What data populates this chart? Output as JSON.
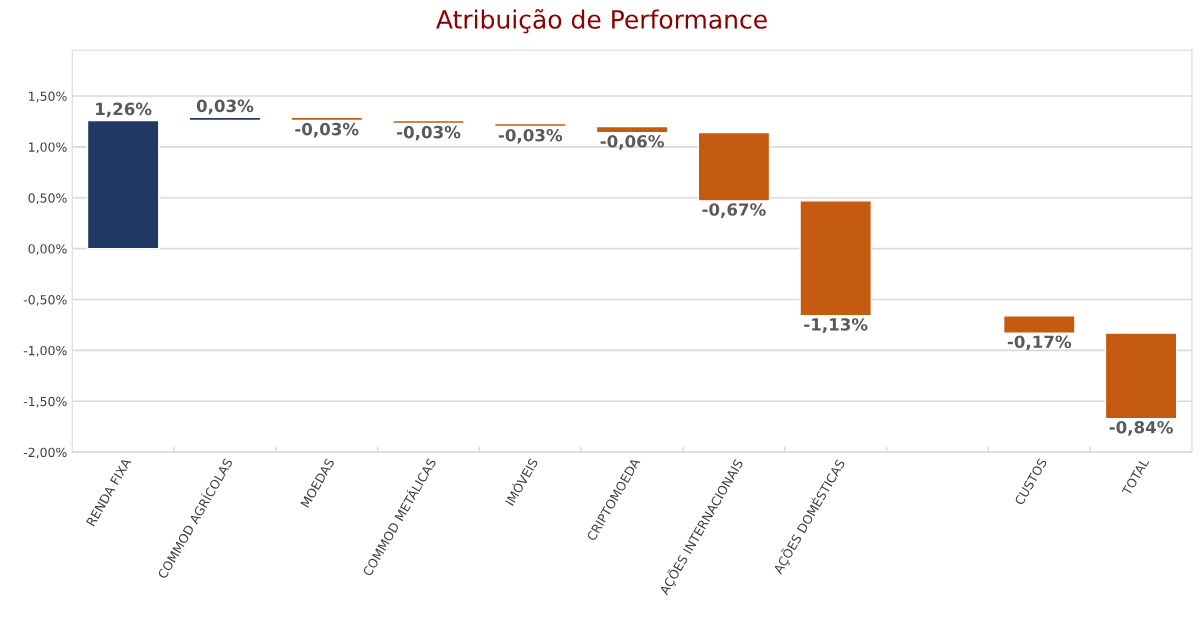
{
  "chart_data": {
    "type": "bar",
    "title": "Atribuição de Performance",
    "categories": [
      "RENDA FIXA",
      "COMMOD AGRÍCOLAS",
      "MOEDAS",
      "COMMOD METÁLICAS",
      "IMÓVEIS",
      "CRIPTOMOEDA",
      "AÇÕES INTERNACIONAIS",
      "AÇÕES DOMÉSTICAS",
      null,
      "CUSTOS",
      "TOTAL"
    ],
    "values": [
      1.26,
      0.03,
      -0.03,
      -0.03,
      -0.03,
      -0.06,
      -0.67,
      -1.13,
      null,
      -0.17,
      -0.84
    ],
    "base": [
      0,
      1.26,
      1.29,
      1.26,
      1.23,
      1.2,
      1.14,
      0.47,
      null,
      -0.66,
      -0.83
    ],
    "colors": [
      "#1f3864",
      "#1f3864",
      "#c55a11",
      "#c55a11",
      "#c55a11",
      "#c55a11",
      "#c55a11",
      "#c55a11",
      null,
      "#c55a11",
      "#c55a11"
    ],
    "value_labels": [
      "1,26%",
      "0,03%",
      "-0,03%",
      "-0,03%",
      "-0,03%",
      "-0,06%",
      "-0,67%",
      "-1,13%",
      null,
      "-0,17%",
      "-0,84%"
    ],
    "ylim": [
      -2.0,
      1.95
    ],
    "yticks": [
      {
        "value": -2.0,
        "label": "-2,00%"
      },
      {
        "value": -1.5,
        "label": "-1,50%"
      },
      {
        "value": -1.0,
        "label": "-1,00%"
      },
      {
        "value": -0.5,
        "label": "-0,50%"
      },
      {
        "value": 0.0,
        "label": "0,00%"
      },
      {
        "value": 0.5,
        "label": "0,50%"
      },
      {
        "value": 1.0,
        "label": "1,00%"
      },
      {
        "value": 1.5,
        "label": "1,50%"
      }
    ],
    "grid": "y"
  }
}
